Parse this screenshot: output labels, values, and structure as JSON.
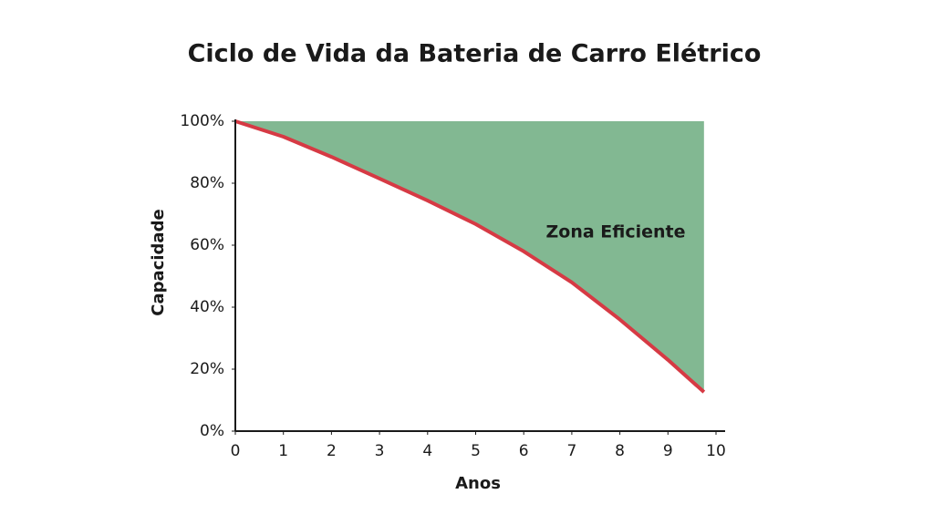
{
  "chart_data": {
    "type": "line",
    "title": "Ciclo de Vida da Bateria de Carro Elétrico",
    "x_label": "Anos",
    "y_label": "Capacidade",
    "annotation": "Zona Eficiente",
    "x": [
      0,
      1,
      2,
      3,
      4,
      5,
      6,
      7,
      8,
      9,
      9.75
    ],
    "values": [
      100,
      95,
      88.5,
      81.5,
      74.4,
      66.8,
      58,
      48,
      36,
      23,
      12.6
    ],
    "color": "#d63a44",
    "fill": "above",
    "fill_color": "#82b892",
    "xlim": [
      0,
      10
    ],
    "xticks": [
      0,
      1,
      2,
      3,
      4,
      5,
      6,
      7,
      8,
      9,
      10
    ],
    "ylim": [
      0,
      100
    ],
    "yticks": [
      {
        "value": 0,
        "label": "0%"
      },
      {
        "value": 20,
        "label": "20%"
      },
      {
        "value": 40,
        "label": "40%"
      },
      {
        "value": 60,
        "label": "60%"
      },
      {
        "value": 80,
        "label": "80%"
      },
      {
        "value": 100,
        "label": "100%"
      }
    ],
    "grid": false
  }
}
